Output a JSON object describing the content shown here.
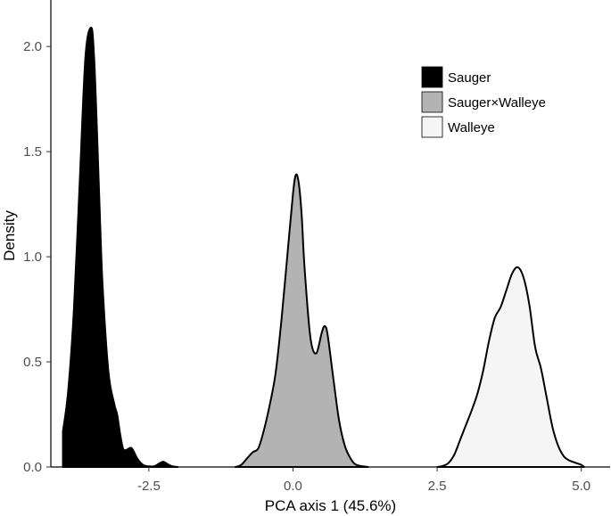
{
  "chart_data": {
    "type": "area",
    "xlabel": "PCA axis 1 (45.6%)",
    "ylabel": "Density",
    "xlim": [
      -4.2,
      5.5
    ],
    "ylim": [
      0,
      2.2
    ],
    "x_ticks": [
      -2.5,
      0.0,
      2.5,
      5.0
    ],
    "x_tick_labels": [
      "-2.5",
      "0.0",
      "2.5",
      "5.0"
    ],
    "y_ticks": [
      0.0,
      0.5,
      1.0,
      1.5,
      2.0
    ],
    "y_tick_labels": [
      "0.0",
      "0.5",
      "1.0",
      "1.5",
      "2.0"
    ],
    "grid": false,
    "legend_position": "top-right",
    "series": [
      {
        "name": "Sauger",
        "color": "#000000",
        "x": [
          -3.99,
          -3.9,
          -3.8,
          -3.7,
          -3.6,
          -3.5,
          -3.45,
          -3.4,
          -3.35,
          -3.3,
          -3.2,
          -3.1,
          -3.05,
          -3.0,
          -2.95,
          -2.9,
          -2.8,
          -2.7,
          -2.6,
          -2.5,
          -2.4,
          -2.3,
          -2.25,
          -2.2,
          -2.1,
          -2.0
        ],
        "y": [
          0.17,
          0.36,
          0.75,
          1.35,
          1.95,
          2.09,
          1.95,
          1.6,
          1.2,
          0.85,
          0.45,
          0.3,
          0.25,
          0.16,
          0.09,
          0.08,
          0.09,
          0.04,
          0.01,
          0.003,
          0.004,
          0.02,
          0.025,
          0.018,
          0.004,
          0.0
        ]
      },
      {
        "name": "Sauger×Walleye",
        "color": "#b3b3b3",
        "x": [
          -1.0,
          -0.9,
          -0.8,
          -0.7,
          -0.6,
          -0.5,
          -0.4,
          -0.3,
          -0.2,
          -0.1,
          0.0,
          0.05,
          0.1,
          0.15,
          0.2,
          0.3,
          0.4,
          0.5,
          0.55,
          0.6,
          0.7,
          0.8,
          0.9,
          1.0,
          1.1,
          1.3
        ],
        "y": [
          0.0,
          0.01,
          0.04,
          0.07,
          0.09,
          0.18,
          0.3,
          0.45,
          0.7,
          1.0,
          1.3,
          1.39,
          1.35,
          1.2,
          0.95,
          0.62,
          0.54,
          0.64,
          0.67,
          0.63,
          0.42,
          0.22,
          0.1,
          0.04,
          0.01,
          0.0
        ]
      },
      {
        "name": "Walleye",
        "color": "#f5f5f5",
        "x": [
          2.5,
          2.6,
          2.7,
          2.8,
          2.9,
          3.0,
          3.1,
          3.2,
          3.3,
          3.4,
          3.5,
          3.6,
          3.7,
          3.8,
          3.9,
          4.0,
          4.1,
          4.2,
          4.3,
          4.4,
          4.5,
          4.6,
          4.7,
          4.8,
          4.9,
          5.0,
          5.05
        ],
        "y": [
          0.0,
          0.005,
          0.02,
          0.06,
          0.13,
          0.2,
          0.27,
          0.35,
          0.46,
          0.6,
          0.71,
          0.76,
          0.84,
          0.92,
          0.95,
          0.9,
          0.77,
          0.57,
          0.47,
          0.33,
          0.19,
          0.1,
          0.05,
          0.03,
          0.02,
          0.01,
          0.0
        ]
      }
    ]
  }
}
